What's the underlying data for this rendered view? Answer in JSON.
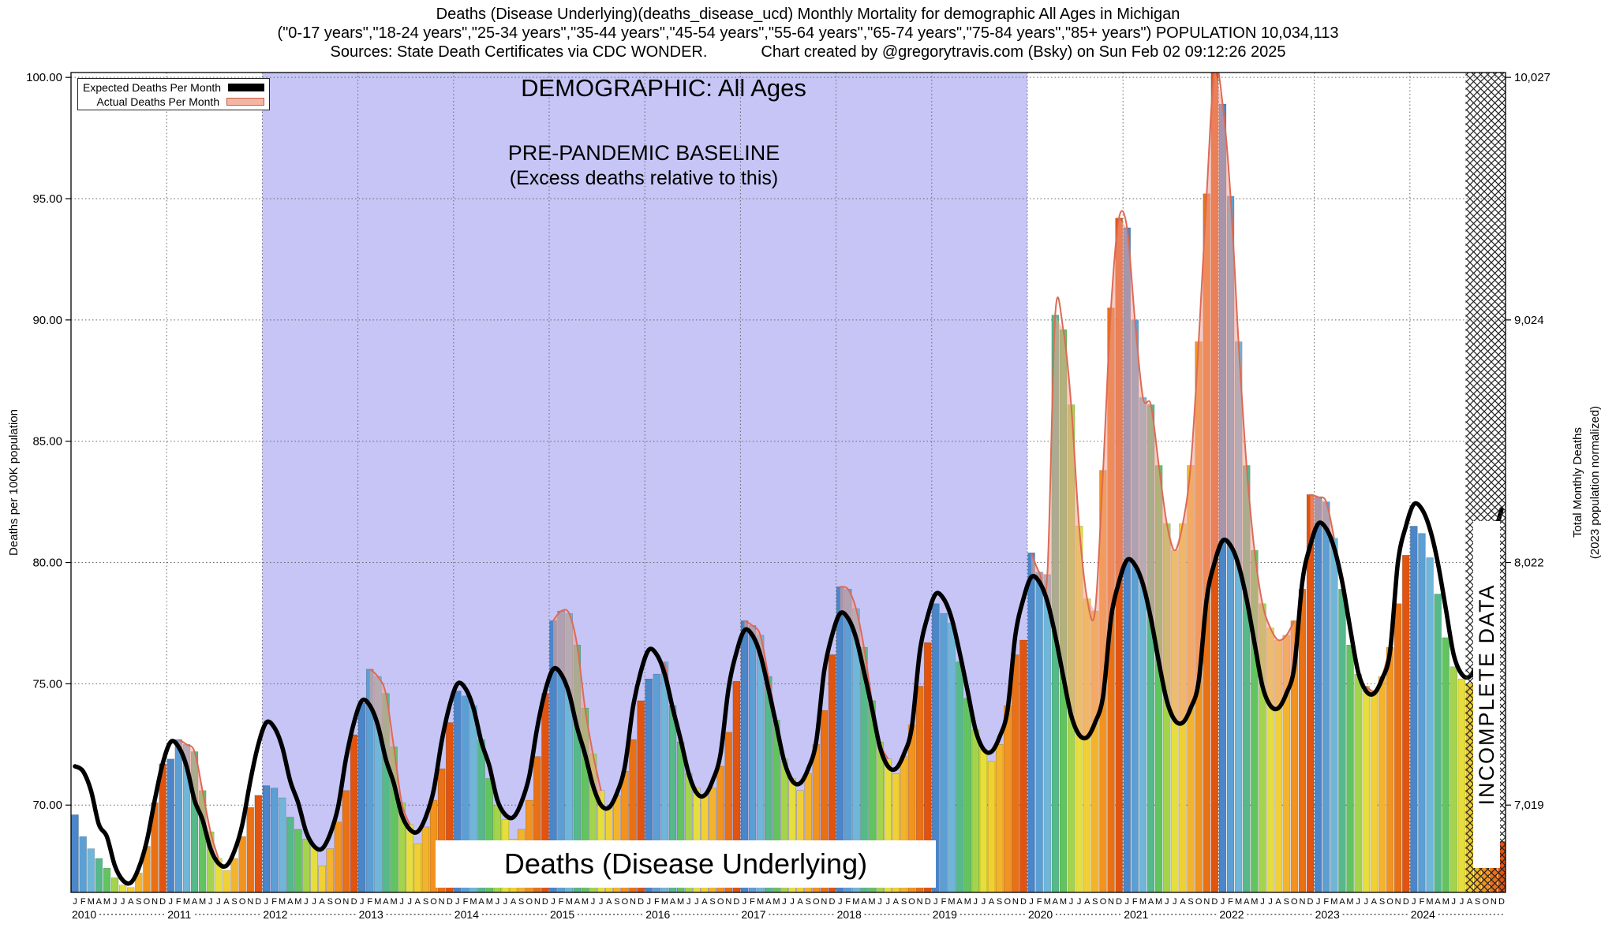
{
  "header": {
    "line1": "Deaths (Disease Underlying)(deaths_disease_ucd) Monthly Mortality for demographic All Ages in Michigan",
    "line2": "(\"0-17 years\",\"18-24 years\",\"25-34 years\",\"35-44 years\",\"45-54 years\",\"55-64 years\",\"65-74 years\",\"75-84 years\",\"85+ years\") POPULATION 10,034,113",
    "sources": "Sources: State Death Certificates via CDC WONDER.",
    "credit": "Chart created by @gregorytravis.com (Bsky) on Sun Feb 02 09:12:26 2025"
  },
  "legend": {
    "expected": {
      "label": "Expected Deaths Per Month",
      "color": "#000000"
    },
    "actual": {
      "label": "Actual Deaths Per Month",
      "fill": "#f4b6a4",
      "border": "#cc5a48"
    }
  },
  "annotations": {
    "demographic": "DEMOGRAPHIC: All Ages",
    "baseline_title": "PRE-PANDEMIC BASELINE",
    "baseline_subtitle": "(Excess deaths relative to this)",
    "bottom_label": "Deaths (Disease Underlying)",
    "incomplete": "INCOMPLETE DATA"
  },
  "chart_data": {
    "type": "bar",
    "title": "Deaths (Disease Underlying)(deaths_disease_ucd) Monthly Mortality for demographic All Ages in Michigan",
    "ylabel_left": "Deaths per 100K population",
    "ylabel_right_line1": "Total Monthly Deaths",
    "ylabel_right_line2": "(2023 population normalized)",
    "ylim": [
      66.4,
      100.2
    ],
    "grid": true,
    "legend_position": "top-left",
    "years": [
      2010,
      2011,
      2012,
      2013,
      2014,
      2015,
      2016,
      2017,
      2018,
      2019,
      2020,
      2021,
      2022,
      2023,
      2024
    ],
    "month_letters": [
      "J",
      "F",
      "M",
      "A",
      "M",
      "J",
      "J",
      "A",
      "S",
      "O",
      "N",
      "D"
    ],
    "left_ticks": [
      100,
      95,
      90,
      85,
      80,
      75,
      70
    ],
    "left_tick_labels": [
      "100.00",
      "95.00",
      "90.00",
      "85.00",
      "80.00",
      "75.00",
      "70.00"
    ],
    "right_ticks": [
      {
        "label": "10,027",
        "value": 100
      },
      {
        "label": "9,024",
        "value": 90
      },
      {
        "label": "8,022",
        "value": 80
      },
      {
        "label": "7,019",
        "value": 70
      }
    ],
    "month_colors": [
      "#4a86c8",
      "#5b9fd4",
      "#6fb6d9",
      "#55b98a",
      "#62c45f",
      "#a4d44c",
      "#e5de3d",
      "#f0d034",
      "#f3b32c",
      "#f2921f",
      "#ea7014",
      "#e05410"
    ],
    "excess_fill": "rgba(242,162,148,0.55)",
    "excess_stroke": "#dd6a55",
    "expected_stroke": "#000000",
    "baseline_region": {
      "label": "PRE-PANDEMIC BASELINE",
      "start_year": 2012,
      "start_month": 1,
      "end_year": 2020,
      "end_month": 1,
      "color": "#c6c5f6"
    },
    "incomplete_region": {
      "label": "INCOMPLETE DATA",
      "start_year": 2024,
      "start_month": 8
    },
    "series": {
      "expected": {
        "name": "Expected Deaths Per Month",
        "type": "line",
        "values_by_year": {
          "2010": [
            71.6,
            71.4,
            70.6,
            69.2,
            68.7,
            67.5,
            66.9,
            66.8,
            67.4,
            68.5,
            70.2,
            71.7
          ],
          "2011": [
            72.6,
            72.4,
            71.6,
            70.2,
            69.4,
            68.2,
            67.6,
            67.5,
            68.1,
            69.2,
            71.0,
            72.5
          ],
          "2012": [
            73.4,
            73.2,
            72.4,
            71.0,
            70.1,
            68.9,
            68.3,
            68.2,
            68.8,
            69.9,
            71.9,
            73.4
          ],
          "2013": [
            74.3,
            74.1,
            73.3,
            71.9,
            70.9,
            69.6,
            69.0,
            68.9,
            69.5,
            70.6,
            72.6,
            74.1
          ],
          "2014": [
            75.0,
            74.8,
            74.0,
            72.6,
            71.6,
            70.2,
            69.6,
            69.5,
            70.1,
            71.2,
            73.2,
            74.7
          ],
          "2015": [
            75.6,
            75.4,
            74.6,
            73.2,
            72.1,
            70.8,
            70.0,
            69.9,
            70.5,
            71.6,
            74.0,
            75.5
          ],
          "2016": [
            76.4,
            76.2,
            75.4,
            74.0,
            72.7,
            71.3,
            70.5,
            70.4,
            71.0,
            72.1,
            74.8,
            76.3
          ],
          "2017": [
            77.2,
            77.0,
            76.2,
            74.8,
            73.3,
            71.8,
            71.0,
            70.9,
            71.5,
            72.6,
            75.5,
            77.0
          ],
          "2018": [
            77.9,
            77.7,
            76.9,
            75.5,
            74.0,
            72.4,
            71.6,
            71.5,
            72.1,
            73.2,
            76.3,
            77.8
          ],
          "2019": [
            78.7,
            78.5,
            77.7,
            76.3,
            74.7,
            73.1,
            72.3,
            72.2,
            72.8,
            73.9,
            77.0,
            78.5
          ],
          "2020": [
            79.4,
            79.2,
            78.4,
            77.0,
            75.3,
            73.7,
            72.9,
            72.8,
            73.4,
            74.5,
            77.7,
            79.2
          ],
          "2021": [
            80.1,
            79.9,
            79.1,
            77.7,
            75.9,
            74.3,
            73.5,
            73.4,
            74.0,
            75.1,
            78.5,
            80.0
          ],
          "2022": [
            80.9,
            80.7,
            79.9,
            78.5,
            76.7,
            74.9,
            74.1,
            74.0,
            74.6,
            75.7,
            79.2,
            80.7
          ],
          "2023": [
            81.6,
            81.4,
            80.6,
            79.2,
            77.3,
            75.5,
            74.7,
            74.6,
            75.2,
            76.3,
            80.0,
            81.5
          ],
          "2024": [
            82.4,
            82.2,
            81.4,
            80.0,
            78.1,
            76.2,
            75.4,
            75.3,
            75.9,
            77.0,
            80.7,
            82.2
          ]
        }
      },
      "actual": {
        "name": "Actual Deaths Per Month",
        "type": "bar",
        "values_by_year": {
          "2010": [
            69.6,
            68.7,
            68.2,
            67.8,
            67.4,
            67.0,
            66.7,
            66.6,
            67.2,
            68.3,
            70.1,
            71.7
          ],
          "2011": [
            71.9,
            72.7,
            72.5,
            72.2,
            70.6,
            68.9,
            67.8,
            67.3,
            67.8,
            68.7,
            69.9,
            70.4
          ],
          "2012": [
            70.8,
            70.7,
            70.3,
            69.5,
            69.0,
            68.6,
            68.3,
            67.5,
            68.2,
            69.3,
            70.6,
            72.9
          ],
          "2013": [
            74.2,
            75.6,
            75.3,
            74.6,
            72.4,
            70.1,
            69.2,
            68.4,
            69.1,
            70.2,
            71.5,
            73.4
          ],
          "2014": [
            74.7,
            74.5,
            74.1,
            72.7,
            71.1,
            70.0,
            69.4,
            68.6,
            69.0,
            70.2,
            72.0,
            74.6
          ],
          "2015": [
            77.6,
            78.0,
            77.9,
            76.6,
            74.0,
            72.1,
            70.6,
            69.9,
            70.4,
            71.4,
            72.7,
            74.3
          ],
          "2016": [
            75.2,
            75.4,
            75.9,
            74.1,
            72.6,
            71.3,
            70.7,
            70.4,
            70.7,
            71.6,
            73.0,
            75.1
          ],
          "2017": [
            77.6,
            77.4,
            77.0,
            75.3,
            73.5,
            71.9,
            71.1,
            70.6,
            71.3,
            72.5,
            73.9,
            76.2
          ],
          "2018": [
            79.0,
            78.9,
            78.1,
            76.5,
            74.3,
            72.6,
            71.9,
            71.3,
            72.0,
            73.3,
            74.9,
            76.7
          ],
          "2019": [
            78.3,
            77.9,
            77.5,
            75.9,
            74.4,
            73.1,
            72.3,
            71.8,
            72.5,
            74.1,
            76.2,
            76.8
          ],
          "2020": [
            80.4,
            79.6,
            79.5,
            90.2,
            89.6,
            86.5,
            81.5,
            78.5,
            78.0,
            83.8,
            90.5,
            94.2
          ],
          "2021": [
            93.8,
            90.0,
            86.8,
            86.5,
            84.0,
            81.6,
            80.5,
            81.6,
            84.0,
            89.1,
            95.2,
            100.4
          ],
          "2022": [
            98.9,
            95.1,
            89.1,
            84.0,
            80.5,
            78.3,
            77.3,
            76.8,
            77.0,
            77.6,
            78.9,
            82.8
          ],
          "2023": [
            82.7,
            82.5,
            81.0,
            78.9,
            76.6,
            75.4,
            74.9,
            74.7,
            75.3,
            76.5,
            78.3,
            80.3
          ],
          "2024": [
            81.5,
            81.2,
            80.2,
            78.7,
            76.9,
            75.7,
            75.2,
            75.0,
            75.5,
            75.3,
            74.8,
            68.5
          ]
        }
      }
    }
  }
}
